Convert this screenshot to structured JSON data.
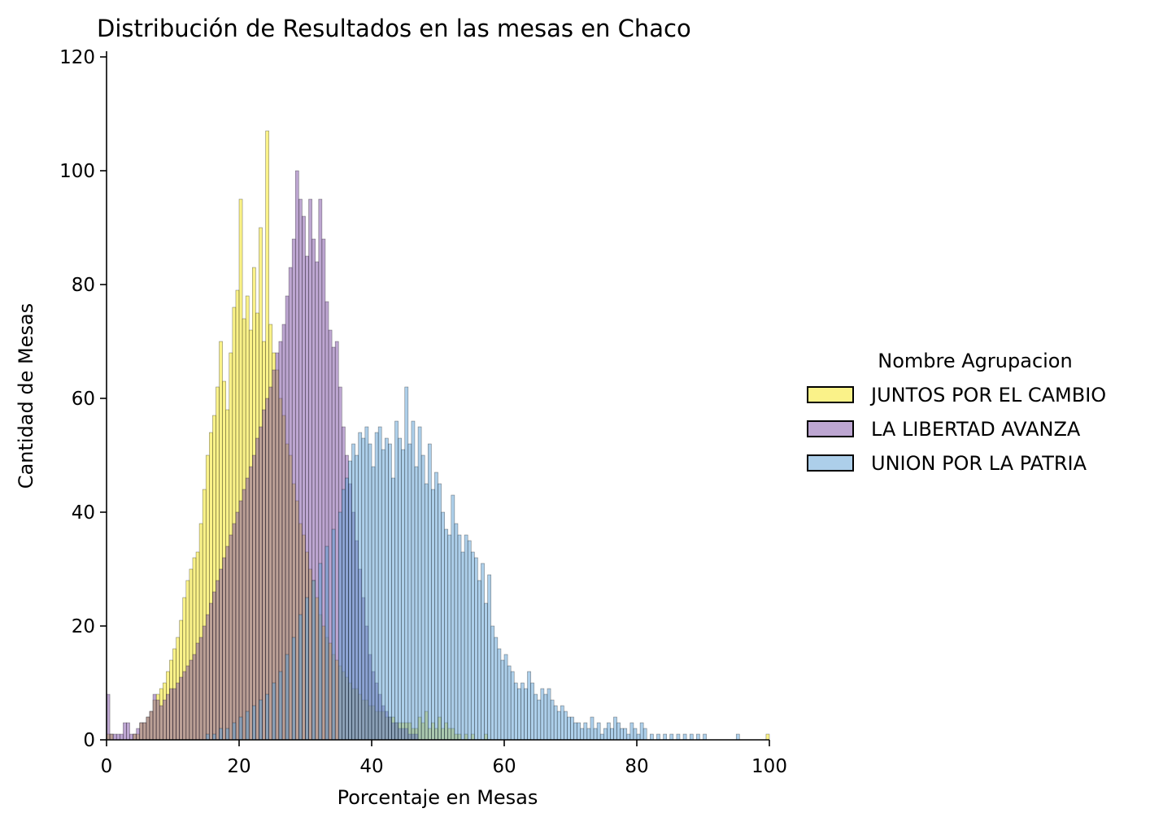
{
  "chart_data": {
    "type": "histogram",
    "title": "Distribución de Resultados en las mesas en Chaco",
    "xlabel": "Porcentaje en Mesas",
    "ylabel": "Cantidad de Mesas",
    "xlim": [
      0,
      100
    ],
    "ylim": [
      0,
      120
    ],
    "xticks": [
      0,
      20,
      40,
      60,
      80,
      100
    ],
    "yticks": [
      0,
      20,
      40,
      60,
      80,
      100,
      120
    ],
    "grid": false,
    "legend": {
      "title": "Nombre Agrupacion",
      "placement": "right"
    },
    "bin_width": 0.5,
    "series": [
      {
        "name": "JUNTOS POR EL CAMBIO",
        "color": "#f5e614",
        "bins": [
          [
            0,
            1
          ],
          [
            0.5,
            1
          ],
          [
            4,
            1
          ],
          [
            4.5,
            1
          ],
          [
            5,
            3
          ],
          [
            5.5,
            3
          ],
          [
            6,
            4
          ],
          [
            6.5,
            5
          ],
          [
            7,
            7
          ],
          [
            7.5,
            8
          ],
          [
            8,
            9
          ],
          [
            8.5,
            10
          ],
          [
            9,
            12
          ],
          [
            9.5,
            14
          ],
          [
            10,
            16
          ],
          [
            10.5,
            18
          ],
          [
            11,
            21
          ],
          [
            11.5,
            25
          ],
          [
            12,
            28
          ],
          [
            12.5,
            30
          ],
          [
            13,
            32
          ],
          [
            13.5,
            33
          ],
          [
            14,
            38
          ],
          [
            14.5,
            44
          ],
          [
            15,
            50
          ],
          [
            15.5,
            54
          ],
          [
            16,
            57
          ],
          [
            16.5,
            62
          ],
          [
            17,
            70
          ],
          [
            17.5,
            63
          ],
          [
            18,
            58
          ],
          [
            18.5,
            68
          ],
          [
            19,
            76
          ],
          [
            19.5,
            79
          ],
          [
            20,
            95
          ],
          [
            20.5,
            74
          ],
          [
            21,
            78
          ],
          [
            21.5,
            72
          ],
          [
            22,
            83
          ],
          [
            22.5,
            75
          ],
          [
            23,
            90
          ],
          [
            23.5,
            70
          ],
          [
            24,
            107
          ],
          [
            24.5,
            73
          ],
          [
            25,
            68
          ],
          [
            25.5,
            65
          ],
          [
            26,
            60
          ],
          [
            26.5,
            57
          ],
          [
            27,
            52
          ],
          [
            27.5,
            50
          ],
          [
            28,
            45
          ],
          [
            28.5,
            42
          ],
          [
            29,
            38
          ],
          [
            29.5,
            36
          ],
          [
            30,
            33
          ],
          [
            30.5,
            30
          ],
          [
            31,
            28
          ],
          [
            31.5,
            25
          ],
          [
            32,
            22
          ],
          [
            32.5,
            20
          ],
          [
            33,
            18
          ],
          [
            33.5,
            17
          ],
          [
            34,
            15
          ],
          [
            34.5,
            14
          ],
          [
            35,
            13
          ],
          [
            35.5,
            12
          ],
          [
            36,
            11
          ],
          [
            36.5,
            10
          ],
          [
            37,
            9
          ],
          [
            37.5,
            9
          ],
          [
            38,
            8
          ],
          [
            38.5,
            7
          ],
          [
            39,
            7
          ],
          [
            39.5,
            6
          ],
          [
            40,
            6
          ],
          [
            40.5,
            5
          ],
          [
            41,
            5
          ],
          [
            41.5,
            5
          ],
          [
            42,
            4
          ],
          [
            42.5,
            4
          ],
          [
            43,
            4
          ],
          [
            43.5,
            3
          ],
          [
            44,
            3
          ],
          [
            44.5,
            3
          ],
          [
            45,
            3
          ],
          [
            45.5,
            3
          ],
          [
            46,
            2
          ],
          [
            46.5,
            2
          ],
          [
            47,
            4
          ],
          [
            47.5,
            3
          ],
          [
            48,
            5
          ],
          [
            48.5,
            2
          ],
          [
            49,
            3
          ],
          [
            49.5,
            2
          ],
          [
            50,
            4
          ],
          [
            50.5,
            2
          ],
          [
            51,
            3
          ],
          [
            51.5,
            2
          ],
          [
            52,
            2
          ],
          [
            52.5,
            1
          ],
          [
            53,
            1
          ],
          [
            54,
            1
          ],
          [
            55,
            1
          ],
          [
            57,
            1
          ],
          [
            99.5,
            1
          ]
        ]
      },
      {
        "name": "LA LIBERTAD AVANZA",
        "color": "#7b4ea3",
        "bins": [
          [
            0,
            8
          ],
          [
            0.5,
            1
          ],
          [
            1,
            1
          ],
          [
            1.5,
            1
          ],
          [
            2,
            1
          ],
          [
            2.5,
            3
          ],
          [
            3,
            3
          ],
          [
            3.5,
            1
          ],
          [
            4,
            1
          ],
          [
            4.5,
            2
          ],
          [
            5,
            3
          ],
          [
            5.5,
            3
          ],
          [
            6,
            4
          ],
          [
            6.5,
            5
          ],
          [
            7,
            8
          ],
          [
            7.5,
            7
          ],
          [
            8,
            6
          ],
          [
            8.5,
            7
          ],
          [
            9,
            8
          ],
          [
            9.5,
            9
          ],
          [
            10,
            9
          ],
          [
            10.5,
            10
          ],
          [
            11,
            11
          ],
          [
            11.5,
            12
          ],
          [
            12,
            13
          ],
          [
            12.5,
            14
          ],
          [
            13,
            15
          ],
          [
            13.5,
            17
          ],
          [
            14,
            18
          ],
          [
            14.5,
            20
          ],
          [
            15,
            22
          ],
          [
            15.5,
            24
          ],
          [
            16,
            26
          ],
          [
            16.5,
            28
          ],
          [
            17,
            30
          ],
          [
            17.5,
            32
          ],
          [
            18,
            34
          ],
          [
            18.5,
            36
          ],
          [
            19,
            38
          ],
          [
            19.5,
            40
          ],
          [
            20,
            42
          ],
          [
            20.5,
            44
          ],
          [
            21,
            46
          ],
          [
            21.5,
            48
          ],
          [
            22,
            50
          ],
          [
            22.5,
            53
          ],
          [
            23,
            55
          ],
          [
            23.5,
            58
          ],
          [
            24,
            60
          ],
          [
            24.5,
            62
          ],
          [
            25,
            65
          ],
          [
            25.5,
            68
          ],
          [
            26,
            70
          ],
          [
            26.5,
            73
          ],
          [
            27,
            78
          ],
          [
            27.5,
            83
          ],
          [
            28,
            88
          ],
          [
            28.5,
            100
          ],
          [
            29,
            95
          ],
          [
            29.5,
            92
          ],
          [
            30,
            85
          ],
          [
            30.5,
            95
          ],
          [
            31,
            88
          ],
          [
            31.5,
            84
          ],
          [
            32,
            95
          ],
          [
            32.5,
            88
          ],
          [
            33,
            77
          ],
          [
            33.5,
            72
          ],
          [
            34,
            69
          ],
          [
            34.5,
            70
          ],
          [
            35,
            62
          ],
          [
            35.5,
            55
          ],
          [
            36,
            50
          ],
          [
            36.5,
            45
          ],
          [
            37,
            40
          ],
          [
            37.5,
            35
          ],
          [
            38,
            30
          ],
          [
            38.5,
            25
          ],
          [
            39,
            20
          ],
          [
            39.5,
            15
          ],
          [
            40,
            12
          ],
          [
            40.5,
            10
          ],
          [
            41,
            8
          ],
          [
            41.5,
            6
          ],
          [
            42,
            5
          ],
          [
            42.5,
            4
          ],
          [
            43,
            3
          ],
          [
            43.5,
            3
          ],
          [
            44,
            2
          ],
          [
            44.5,
            2
          ],
          [
            45,
            2
          ],
          [
            45.5,
            1
          ],
          [
            46,
            1
          ],
          [
            46.5,
            1
          ]
        ]
      },
      {
        "name": "UNION POR LA PATRIA",
        "color": "#5b9fd6",
        "bins": [
          [
            15,
            1
          ],
          [
            16,
            1
          ],
          [
            17,
            2
          ],
          [
            18,
            2
          ],
          [
            19,
            3
          ],
          [
            20,
            4
          ],
          [
            21,
            5
          ],
          [
            22,
            6
          ],
          [
            23,
            7
          ],
          [
            24,
            8
          ],
          [
            25,
            10
          ],
          [
            26,
            12
          ],
          [
            27,
            15
          ],
          [
            28,
            18
          ],
          [
            29,
            22
          ],
          [
            30,
            25
          ],
          [
            31,
            28
          ],
          [
            32,
            31
          ],
          [
            33,
            34
          ],
          [
            34,
            37
          ],
          [
            35,
            40
          ],
          [
            35.5,
            44
          ],
          [
            36,
            46
          ],
          [
            36.5,
            49
          ],
          [
            37,
            52
          ],
          [
            37.5,
            50
          ],
          [
            38,
            54
          ],
          [
            38.5,
            53
          ],
          [
            39,
            55
          ],
          [
            39.5,
            52
          ],
          [
            40,
            48
          ],
          [
            40.5,
            54
          ],
          [
            41,
            55
          ],
          [
            41.5,
            51
          ],
          [
            42,
            53
          ],
          [
            42.5,
            52
          ],
          [
            43,
            46
          ],
          [
            43.5,
            56
          ],
          [
            44,
            53
          ],
          [
            44.5,
            51
          ],
          [
            45,
            62
          ],
          [
            45.5,
            52
          ],
          [
            46,
            56
          ],
          [
            46.5,
            48
          ],
          [
            47,
            55
          ],
          [
            47.5,
            50
          ],
          [
            48,
            45
          ],
          [
            48.5,
            52
          ],
          [
            49,
            44
          ],
          [
            49.5,
            47
          ],
          [
            50,
            45
          ],
          [
            50.5,
            40
          ],
          [
            51,
            37
          ],
          [
            51.5,
            36
          ],
          [
            52,
            43
          ],
          [
            52.5,
            38
          ],
          [
            53,
            36
          ],
          [
            53.5,
            33
          ],
          [
            54,
            36
          ],
          [
            54.5,
            35
          ],
          [
            55,
            33
          ],
          [
            55.5,
            32
          ],
          [
            56,
            28
          ],
          [
            56.5,
            31
          ],
          [
            57,
            24
          ],
          [
            57.5,
            29
          ],
          [
            58,
            20
          ],
          [
            58.5,
            18
          ],
          [
            59,
            16
          ],
          [
            59.5,
            14
          ],
          [
            60,
            15
          ],
          [
            60.5,
            13
          ],
          [
            61,
            12
          ],
          [
            61.5,
            10
          ],
          [
            62,
            9
          ],
          [
            62.5,
            10
          ],
          [
            63,
            9
          ],
          [
            63.5,
            12
          ],
          [
            64,
            10
          ],
          [
            64.5,
            8
          ],
          [
            65,
            7
          ],
          [
            65.5,
            9
          ],
          [
            66,
            8
          ],
          [
            66.5,
            9
          ],
          [
            67,
            7
          ],
          [
            67.5,
            6
          ],
          [
            68,
            5
          ],
          [
            68.5,
            6
          ],
          [
            69,
            5
          ],
          [
            69.5,
            4
          ],
          [
            70,
            4
          ],
          [
            70.5,
            3
          ],
          [
            71,
            3
          ],
          [
            71.5,
            2
          ],
          [
            72,
            3
          ],
          [
            72.5,
            2
          ],
          [
            73,
            4
          ],
          [
            73.5,
            2
          ],
          [
            74,
            3
          ],
          [
            74.5,
            1
          ],
          [
            75,
            2
          ],
          [
            75.5,
            3
          ],
          [
            76,
            2
          ],
          [
            76.5,
            4
          ],
          [
            77,
            3
          ],
          [
            77.5,
            2
          ],
          [
            78,
            2
          ],
          [
            78.5,
            1
          ],
          [
            79,
            3
          ],
          [
            79.5,
            2
          ],
          [
            80,
            1
          ],
          [
            80.5,
            3
          ],
          [
            81,
            2
          ],
          [
            82,
            1
          ],
          [
            83,
            1
          ],
          [
            84,
            1
          ],
          [
            85,
            1
          ],
          [
            86,
            1
          ],
          [
            87,
            1
          ],
          [
            88,
            1
          ],
          [
            89,
            1
          ],
          [
            90,
            1
          ],
          [
            95,
            1
          ]
        ]
      }
    ]
  }
}
